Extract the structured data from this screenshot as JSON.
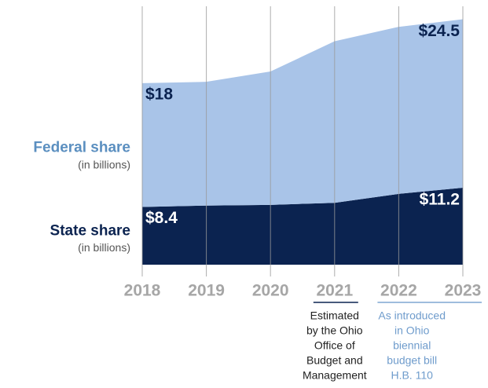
{
  "chart_data": {
    "type": "stacked_area",
    "categories": [
      "2018",
      "2019",
      "2020",
      "2021",
      "2022",
      "2023"
    ],
    "series": [
      {
        "name": "State share",
        "unit": "(in billions)",
        "color": "#0b2350",
        "label_color": "#0b2350",
        "values": [
          8.4,
          8.6,
          8.7,
          9.0,
          10.3,
          11.2
        ],
        "value_labels": [
          "$8.4",
          null,
          null,
          null,
          null,
          "$11.2"
        ]
      },
      {
        "name": "Federal share",
        "unit": "(in billions)",
        "color": "#a9c4e8",
        "label_color": "#5b8fc0",
        "values": [
          18,
          18.0,
          19.4,
          23.5,
          24.3,
          24.5
        ],
        "value_labels": [
          "$18",
          null,
          null,
          null,
          null,
          "$24.5"
        ]
      }
    ],
    "ylim": [
      0,
      38.5
    ],
    "annotations": [
      {
        "from": 3,
        "to": 3,
        "color": "#0b2350",
        "lines": [
          "Estimated",
          "by the Ohio",
          "Office of",
          "Budget and",
          "Management"
        ]
      },
      {
        "from": 4,
        "to": 5,
        "color": "#7fa7d2",
        "lines": [
          "As introduced",
          "in Ohio",
          "biennial",
          "budget bill",
          "H.B. 110"
        ]
      }
    ]
  }
}
